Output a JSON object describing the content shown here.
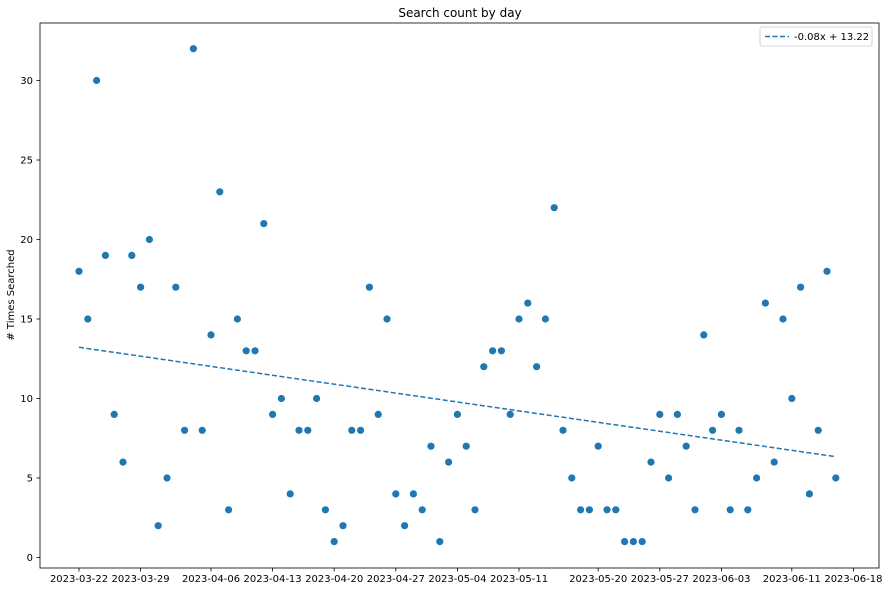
{
  "chart_data": {
    "type": "scatter",
    "title": "Search count by day",
    "xlabel": "",
    "ylabel": "# Times Searched",
    "x_start_date": "2023-03-22",
    "x_ticks": [
      "2023-03-22",
      "2023-03-29",
      "2023-04-06",
      "2023-04-13",
      "2023-04-20",
      "2023-04-27",
      "2023-05-04",
      "2023-05-11",
      "2023-05-20",
      "2023-05-27",
      "2023-06-03",
      "2023-06-11",
      "2023-06-18"
    ],
    "y_ticks": [
      "0",
      "5",
      "10",
      "15",
      "20",
      "25",
      "30"
    ],
    "ylim": [
      -0.6,
      33.6
    ],
    "grid": false,
    "legend_position": "upper right",
    "color": "#1f77b4",
    "series": [
      {
        "values": [
          18,
          15,
          30,
          19,
          9,
          6,
          19,
          17,
          20,
          2,
          5,
          17,
          8,
          32,
          8,
          14,
          23,
          3,
          15,
          13,
          13,
          21,
          9,
          10,
          4,
          8,
          8,
          10,
          3,
          1,
          2,
          8,
          8,
          17,
          9,
          15,
          4,
          2,
          4,
          3,
          7,
          1,
          6,
          9,
          7,
          3,
          12,
          13,
          13,
          9,
          15,
          16,
          12,
          15,
          22,
          8,
          5,
          3,
          3,
          7,
          3,
          3,
          1,
          1,
          1,
          6,
          9,
          5,
          9,
          7,
          3,
          14,
          8,
          9,
          3,
          8,
          3,
          5,
          16,
          6,
          15,
          10,
          17,
          4,
          8,
          18,
          5
        ]
      }
    ],
    "trendline": {
      "label": "-0.08x + 13.22",
      "slope": -0.08,
      "intercept": 13.22,
      "style": "dashed"
    }
  }
}
